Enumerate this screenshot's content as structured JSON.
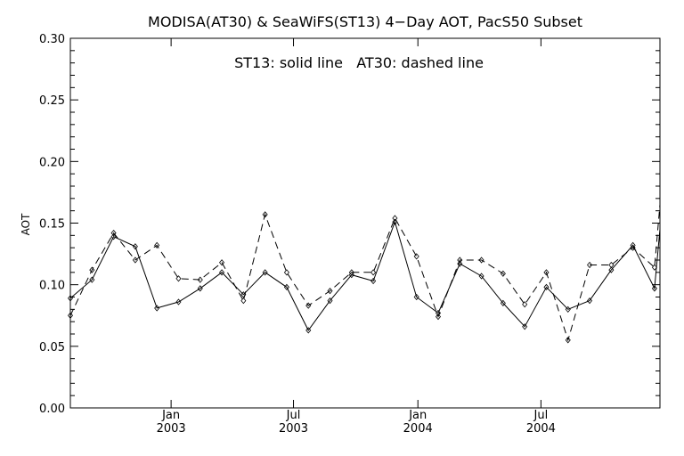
{
  "chart_data": {
    "type": "line",
    "title": "MODISA(AT30) & SeaWiFS(ST13) 4−Day AOT, PacS50 Subset",
    "annotation": "ST13: solid line   AT30: dashed line",
    "ylabel": "AOT",
    "xlabel": "",
    "ylim": [
      0.0,
      0.3
    ],
    "yticks": [
      "0.00",
      "0.05",
      "0.10",
      "0.15",
      "0.20",
      "0.25",
      "0.30"
    ],
    "ytick_values": [
      0.0,
      0.05,
      0.1,
      0.15,
      0.2,
      0.25,
      0.3
    ],
    "xticks": [
      {
        "month": "Jan",
        "year": "2003"
      },
      {
        "month": "Jul",
        "year": "2003"
      },
      {
        "month": "Jan",
        "year": "2004"
      },
      {
        "month": "Jul",
        "year": "2004"
      }
    ],
    "xlim": [
      "2002-08-05",
      "2004-12-24"
    ],
    "xtick_dates": [
      "2003-01-01",
      "2003-07-01",
      "2004-01-01",
      "2004-07-01"
    ],
    "grid": false,
    "x": [
      "2002-08-05",
      "2002-09-06",
      "2002-10-08",
      "2002-11-09",
      "2002-12-11",
      "2003-01-12",
      "2003-02-13",
      "2003-03-17",
      "2003-04-18",
      "2003-05-20",
      "2003-06-21",
      "2003-07-23",
      "2003-08-24",
      "2003-09-25",
      "2003-10-27",
      "2003-11-28",
      "2003-12-30",
      "2004-01-31",
      "2004-03-03",
      "2004-04-04",
      "2004-05-06",
      "2004-06-07",
      "2004-07-09",
      "2004-08-10",
      "2004-09-11",
      "2004-10-13",
      "2004-11-14",
      "2004-12-16"
    ],
    "series": [
      {
        "name": "ST13",
        "dash": "solid",
        "values": [
          0.089,
          0.104,
          0.139,
          0.131,
          0.081,
          0.086,
          0.097,
          0.11,
          0.092,
          0.11,
          0.098,
          0.063,
          0.087,
          0.108,
          0.103,
          0.151,
          0.09,
          0.077,
          0.117,
          0.107,
          0.085,
          0.066,
          0.098,
          0.08,
          0.087,
          0.112,
          0.132,
          0.097
        ]
      },
      {
        "name": "AT30",
        "dash": "dashed",
        "values": [
          0.075,
          0.112,
          0.142,
          0.12,
          0.132,
          0.105,
          0.104,
          0.118,
          0.087,
          0.157,
          0.11,
          0.083,
          0.095,
          0.11,
          0.11,
          0.154,
          0.123,
          0.074,
          0.12,
          0.12,
          0.109,
          0.084,
          0.11,
          0.055,
          0.116,
          0.116,
          0.13,
          0.114
        ]
      }
    ],
    "extra_points": [
      {
        "series": "ST13",
        "x": "2004-12-24",
        "y": 0.145
      },
      {
        "series": "AT30",
        "x": "2004-12-24",
        "y": 0.165
      }
    ]
  }
}
